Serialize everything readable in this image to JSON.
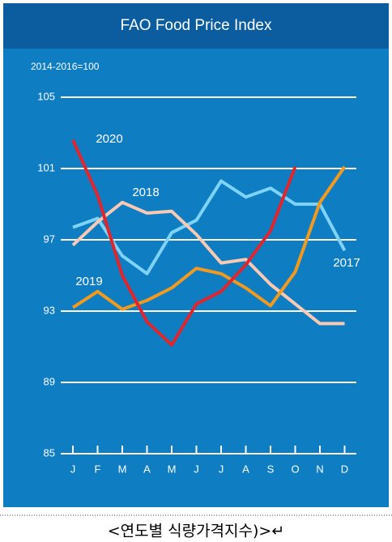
{
  "chart_data": {
    "type": "line",
    "title": "FAO Food Price Index",
    "ylabel": "2014-2016=100",
    "categories": [
      "J",
      "F",
      "M",
      "A",
      "M",
      "J",
      "J",
      "A",
      "S",
      "O",
      "N",
      "D"
    ],
    "series": [
      {
        "name": "2017",
        "color": "#7fd3f7",
        "values": [
          97.7,
          98.2,
          96.1,
          95.1,
          97.4,
          98.1,
          100.3,
          99.4,
          99.9,
          99.0,
          99.0,
          96.4
        ]
      },
      {
        "name": "2018",
        "color": "#f9c9b4",
        "values": [
          96.7,
          98.0,
          99.1,
          98.5,
          98.6,
          97.3,
          95.7,
          95.9,
          94.5,
          93.4,
          92.3,
          92.3
        ]
      },
      {
        "name": "2019",
        "color": "#f29a1e",
        "values": [
          93.2,
          94.1,
          93.1,
          93.6,
          94.3,
          95.4,
          95.1,
          94.3,
          93.3,
          95.2,
          99.1,
          101.1
        ]
      },
      {
        "name": "2020",
        "color": "#e0262c",
        "values": [
          102.6,
          99.5,
          95.0,
          92.4,
          91.1,
          93.4,
          94.1,
          95.6,
          97.5,
          101.1,
          null,
          null
        ]
      }
    ],
    "ylim": [
      85,
      105
    ],
    "yticks": [
      85,
      89,
      93,
      97,
      101,
      105
    ],
    "grid": true,
    "caption": "<연도별  식량가격지수)>↵"
  }
}
